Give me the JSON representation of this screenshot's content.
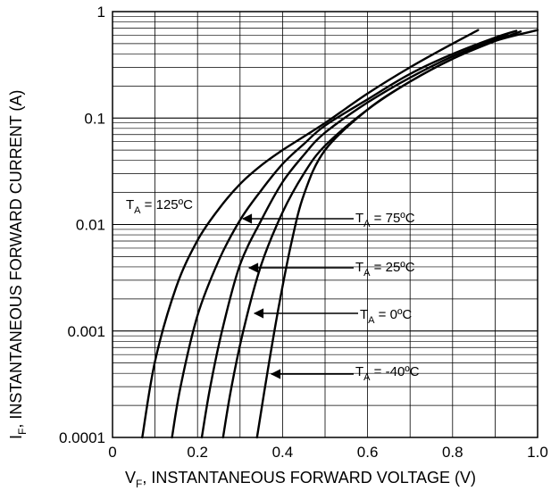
{
  "chart_data": {
    "type": "line",
    "title": "",
    "xlabel": {
      "main": "V",
      "sub": "F",
      "rest": ", INSTANTANEOUS FORWARD VOLTAGE (V)"
    },
    "ylabel": {
      "main": "I",
      "sub": "F",
      "rest": ", INSTANTANEOUS FORWARD CURRENT (A)"
    },
    "x_scale": "linear",
    "y_scale": "log",
    "xlim": [
      0,
      1.0
    ],
    "ylim": [
      0.0001,
      1
    ],
    "x_ticks": [
      {
        "value": 0,
        "label": "0"
      },
      {
        "value": 0.2,
        "label": "0.2"
      },
      {
        "value": 0.4,
        "label": "0.4"
      },
      {
        "value": 0.6,
        "label": "0.6"
      },
      {
        "value": 0.8,
        "label": "0.8"
      },
      {
        "value": 1.0,
        "label": "1.0"
      }
    ],
    "y_ticks": [
      {
        "value": 1,
        "label": "1"
      },
      {
        "value": 0.1,
        "label": "0.1"
      },
      {
        "value": 0.01,
        "label": "0.01"
      },
      {
        "value": 0.001,
        "label": "0.001"
      },
      {
        "value": 0.0001,
        "label": "0.0001"
      }
    ],
    "grid": true,
    "series": [
      {
        "prefix": "T",
        "sub": "A",
        "suffix": " = 125ºC",
        "x": [
          0.07,
          0.1,
          0.15,
          0.2,
          0.25,
          0.3,
          0.35,
          0.4,
          0.5,
          0.6,
          0.7,
          0.8,
          0.86
        ],
        "y": [
          0.0001,
          0.00052,
          0.0026,
          0.0071,
          0.014,
          0.024,
          0.036,
          0.05,
          0.09,
          0.17,
          0.3,
          0.5,
          0.67
        ]
      },
      {
        "prefix": "T",
        "sub": "A",
        "suffix": " = 75ºC",
        "x": [
          0.14,
          0.16,
          0.2,
          0.25,
          0.3,
          0.35,
          0.4,
          0.45,
          0.5,
          0.6,
          0.7,
          0.8,
          0.9,
          0.95
        ],
        "y": [
          0.0001,
          0.0003,
          0.0014,
          0.0046,
          0.011,
          0.021,
          0.037,
          0.057,
          0.085,
          0.15,
          0.26,
          0.4,
          0.57,
          0.66
        ]
      },
      {
        "prefix": "T",
        "sub": "A",
        "suffix": " = 25ºC",
        "x": [
          0.21,
          0.23,
          0.26,
          0.3,
          0.35,
          0.4,
          0.45,
          0.5,
          0.6,
          0.7,
          0.8,
          0.9,
          0.93
        ],
        "y": [
          0.0001,
          0.0003,
          0.0011,
          0.0042,
          0.011,
          0.025,
          0.045,
          0.073,
          0.14,
          0.24,
          0.38,
          0.55,
          0.62
        ]
      },
      {
        "prefix": "T",
        "sub": "A",
        "suffix": " = 0ºC",
        "x": [
          0.26,
          0.28,
          0.31,
          0.35,
          0.4,
          0.45,
          0.5,
          0.6,
          0.7,
          0.8,
          0.9,
          0.96
        ],
        "y": [
          0.0001,
          0.0003,
          0.0011,
          0.0042,
          0.013,
          0.03,
          0.055,
          0.12,
          0.22,
          0.36,
          0.53,
          0.65
        ]
      },
      {
        "prefix": "T",
        "sub": "A",
        "suffix": " = -40ºC",
        "x": [
          0.34,
          0.36,
          0.39,
          0.42,
          0.45,
          0.5,
          0.6,
          0.7,
          0.8,
          0.9,
          1.0
        ],
        "y": [
          0.0001,
          0.00032,
          0.0016,
          0.0065,
          0.019,
          0.05,
          0.12,
          0.22,
          0.36,
          0.53,
          0.67
        ]
      }
    ]
  }
}
